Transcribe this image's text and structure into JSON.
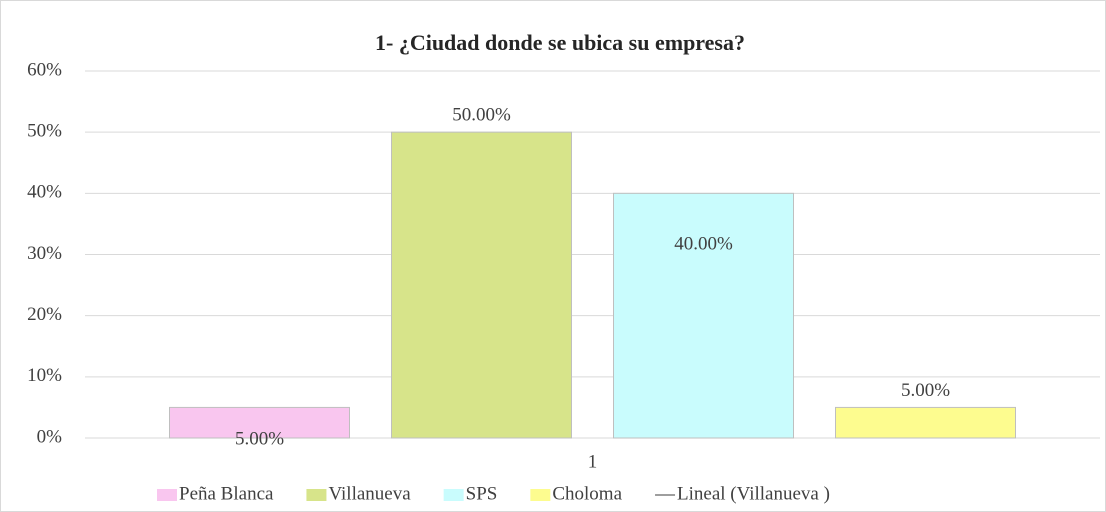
{
  "chart_data": {
    "type": "bar",
    "title": "1- ¿Ciudad donde se ubica su empresa?",
    "categories": [
      "1"
    ],
    "series": [
      {
        "name": "Peña  Blanca",
        "color": "#f9c6ef",
        "values": [
          5
        ],
        "value_labels": [
          "5.00%"
        ]
      },
      {
        "name": "Villanueva",
        "color": "#d7e48a",
        "values": [
          50
        ],
        "value_labels": [
          "50.00%"
        ]
      },
      {
        "name": "SPS",
        "color": "#c9fcfd",
        "values": [
          40
        ],
        "value_labels": [
          "40.00%"
        ]
      },
      {
        "name": "Choloma",
        "color": "#fdfc8f",
        "values": [
          5
        ],
        "value_labels": [
          "5.00%"
        ]
      }
    ],
    "trendline": {
      "name": "Lineal (Villanueva )",
      "color": "#7f7f7f"
    },
    "ylim": [
      0,
      60
    ],
    "yticks": [
      {
        "value": 0,
        "label": "0%"
      },
      {
        "value": 10,
        "label": "10%"
      },
      {
        "value": 20,
        "label": "20%"
      },
      {
        "value": 30,
        "label": "30%"
      },
      {
        "value": 40,
        "label": "40%"
      },
      {
        "value": 50,
        "label": "50%"
      },
      {
        "value": 60,
        "label": "60%"
      }
    ],
    "grid": true,
    "legend": "bottom"
  }
}
